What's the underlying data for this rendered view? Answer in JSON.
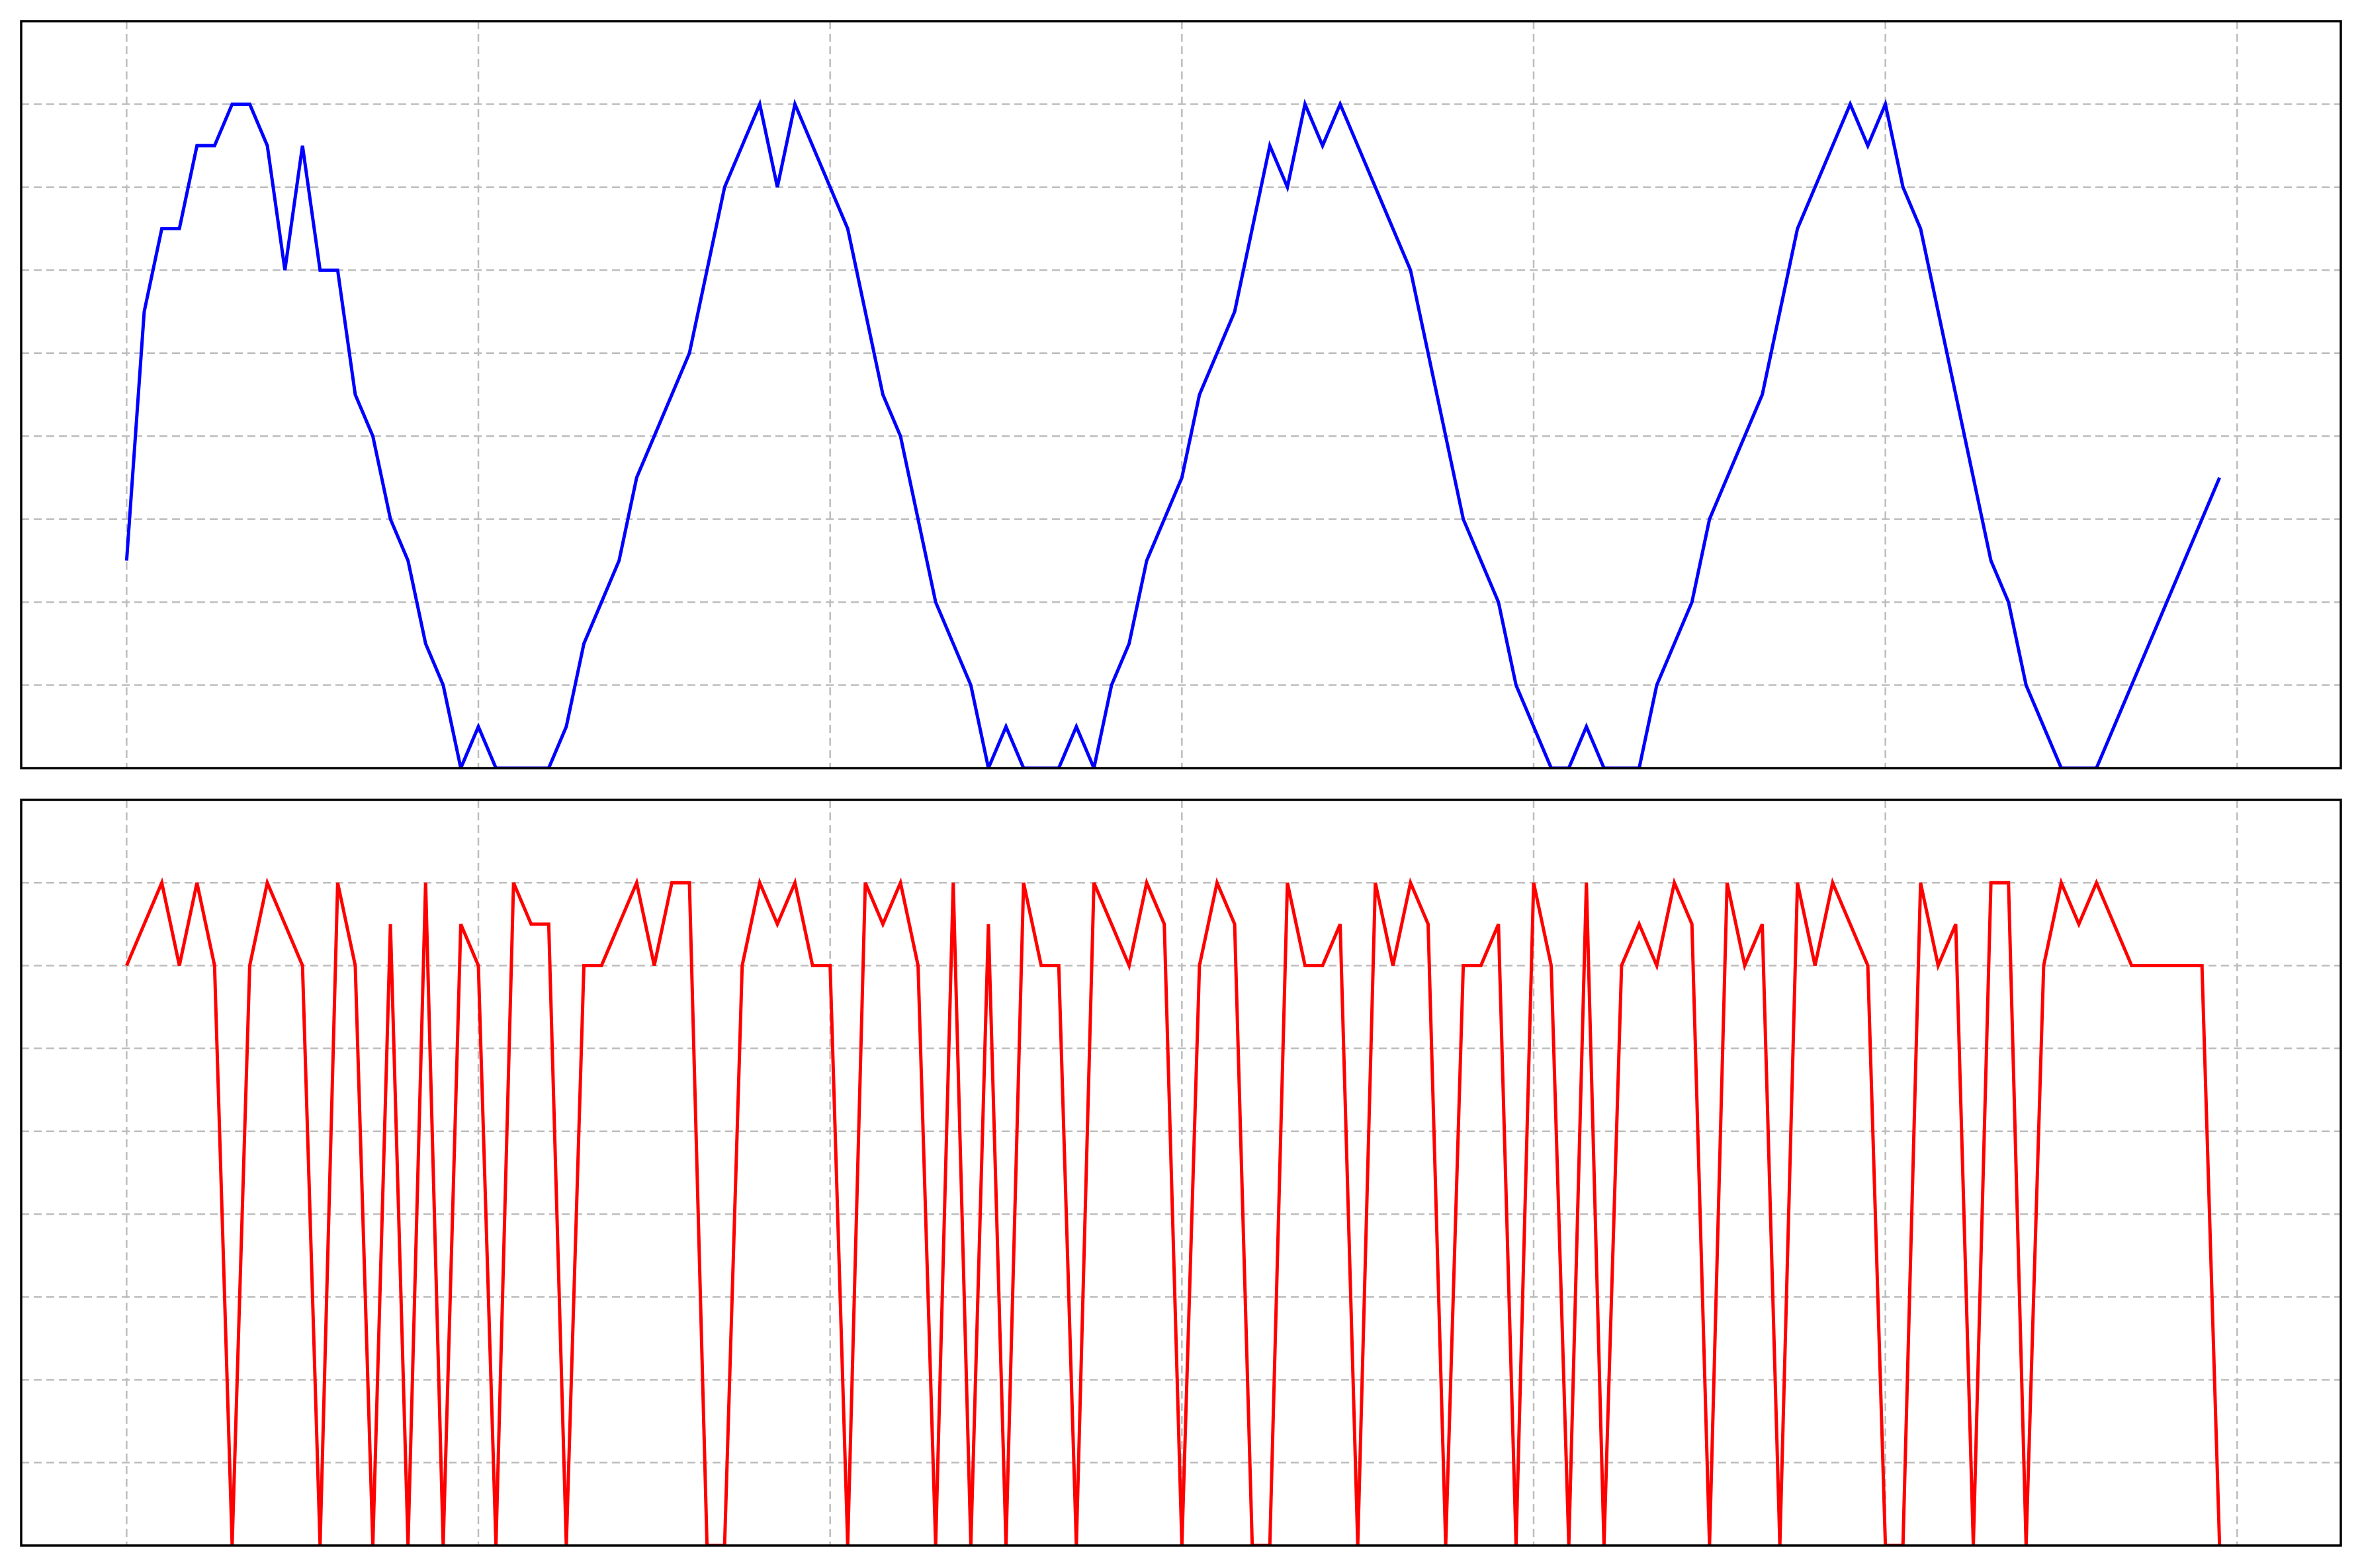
{
  "chart_data": [
    {
      "type": "line",
      "color": "#0000ff",
      "grid": true,
      "xlim": [
        -59.95,
        1258.95
      ],
      "xticks": [
        0,
        200,
        400,
        600,
        800,
        1000,
        1200
      ],
      "ylim": [
        -1,
        8
      ],
      "yticks": [
        0,
        1,
        2,
        3,
        4,
        5,
        6,
        7
      ],
      "x": [
        0,
        10,
        20,
        30,
        40,
        50,
        60,
        70,
        80,
        90,
        100,
        110,
        120,
        130,
        140,
        150,
        160,
        170,
        180,
        190,
        200,
        210,
        220,
        230,
        240,
        250,
        260,
        270,
        280,
        290,
        300,
        310,
        320,
        330,
        340,
        350,
        360,
        370,
        380,
        390,
        400,
        410,
        420,
        430,
        440,
        450,
        460,
        470,
        480,
        490,
        500,
        510,
        520,
        530,
        540,
        550,
        560,
        570,
        580,
        590,
        600,
        610,
        620,
        630,
        640,
        650,
        660,
        670,
        680,
        690,
        700,
        710,
        720,
        730,
        740,
        750,
        760,
        770,
        780,
        790,
        800,
        810,
        820,
        830,
        840,
        850,
        860,
        870,
        880,
        890,
        900,
        910,
        920,
        930,
        940,
        950,
        960,
        970,
        980,
        990,
        1000,
        1010,
        1020,
        1030,
        1040,
        1050,
        1060,
        1070,
        1080,
        1090,
        1100,
        1110,
        1120,
        1130,
        1140,
        1150,
        1160,
        1170,
        1180,
        1190
      ],
      "values": [
        1.5,
        4.5,
        5.5,
        5.5,
        6.5,
        6.5,
        7,
        7,
        6.5,
        5,
        6.5,
        5,
        5,
        3.5,
        3,
        2,
        1.5,
        0.5,
        0,
        -1,
        -0.5,
        -1,
        -1,
        -1,
        -1,
        -0.5,
        0.5,
        1,
        1.5,
        2.5,
        3,
        3.5,
        4,
        5,
        6,
        6.5,
        7,
        6,
        7,
        6.5,
        6,
        5.5,
        4.5,
        3.5,
        3,
        2,
        1,
        0.5,
        0,
        -1,
        -0.5,
        -1,
        -1,
        -1,
        -0.5,
        -1,
        0,
        0.5,
        1.5,
        2,
        2.5,
        3.5,
        4,
        4.5,
        5.5,
        6.5,
        6,
        7,
        6.5,
        7,
        6.5,
        6,
        5.5,
        5,
        4,
        3,
        2,
        1.5,
        1,
        0,
        -0.5,
        -1,
        -1,
        -0.5,
        -1,
        -1,
        -1,
        0,
        0.5,
        1,
        2,
        2.5,
        3,
        3.5,
        4.5,
        5.5,
        6,
        6.5,
        7,
        6.5,
        7,
        6,
        5.5,
        4.5,
        3.5,
        2.5,
        1.5,
        1,
        0,
        -0.5,
        -1,
        -1,
        -1,
        -0.5,
        0,
        0.5,
        1,
        1.5,
        2,
        2.5
      ]
    },
    {
      "type": "line",
      "color": "#ff0000",
      "grid": true,
      "xlim": [
        -59.95,
        1258.95
      ],
      "xticks": [
        0,
        200,
        400,
        600,
        800,
        1000,
        1200
      ],
      "ylim": [
        -1,
        8
      ],
      "yticks": [
        0,
        1,
        2,
        3,
        4,
        5,
        6,
        7
      ],
      "x": [
        0,
        10,
        20,
        30,
        40,
        50,
        60,
        70,
        80,
        90,
        100,
        110,
        120,
        130,
        140,
        150,
        160,
        170,
        180,
        190,
        200,
        210,
        220,
        230,
        240,
        250,
        260,
        270,
        280,
        290,
        300,
        310,
        320,
        330,
        340,
        350,
        360,
        370,
        380,
        390,
        400,
        410,
        420,
        430,
        440,
        450,
        460,
        470,
        480,
        490,
        500,
        510,
        520,
        530,
        540,
        550,
        560,
        570,
        580,
        590,
        600,
        610,
        620,
        630,
        640,
        650,
        660,
        670,
        680,
        690,
        700,
        710,
        720,
        730,
        740,
        750,
        760,
        770,
        780,
        790,
        800,
        810,
        820,
        830,
        840,
        850,
        860,
        870,
        880,
        890,
        900,
        910,
        920,
        930,
        940,
        950,
        960,
        970,
        980,
        990,
        1000,
        1010,
        1020,
        1030,
        1040,
        1050,
        1060,
        1070,
        1080,
        1090,
        1100,
        1110,
        1120,
        1130,
        1140,
        1150,
        1160,
        1170,
        1180,
        1190
      ],
      "values": [
        6,
        6.5,
        7,
        6,
        7,
        6,
        -1,
        6,
        7,
        6.5,
        6,
        -1,
        7,
        6,
        -1,
        6.5,
        -1,
        7,
        -1,
        6.5,
        6,
        -1,
        7,
        6.5,
        6.5,
        -1,
        6,
        6,
        6.5,
        7,
        6,
        7,
        7,
        -1,
        -1,
        6,
        7,
        6.5,
        7,
        6,
        6,
        -1,
        7,
        6.5,
        7,
        6,
        -1,
        7,
        -1,
        6.5,
        -1,
        7,
        6,
        6,
        -1,
        7,
        6.5,
        6,
        7,
        6.5,
        -1,
        6,
        7,
        6.5,
        -1,
        -1,
        7,
        6,
        6,
        6.5,
        -1,
        7,
        6,
        7,
        6.5,
        -1,
        6,
        6,
        6.5,
        -1,
        7,
        6,
        -1,
        7,
        -1,
        6,
        6.5,
        6,
        7,
        6.5,
        -1,
        7,
        6,
        6.5,
        -1,
        7,
        6,
        7,
        6.5,
        6,
        -1,
        -1,
        7,
        6,
        6.5,
        -1,
        7,
        7,
        -1,
        6,
        7,
        6.5,
        7,
        6.5,
        6,
        6,
        6,
        6,
        6,
        -1
      ]
    }
  ]
}
